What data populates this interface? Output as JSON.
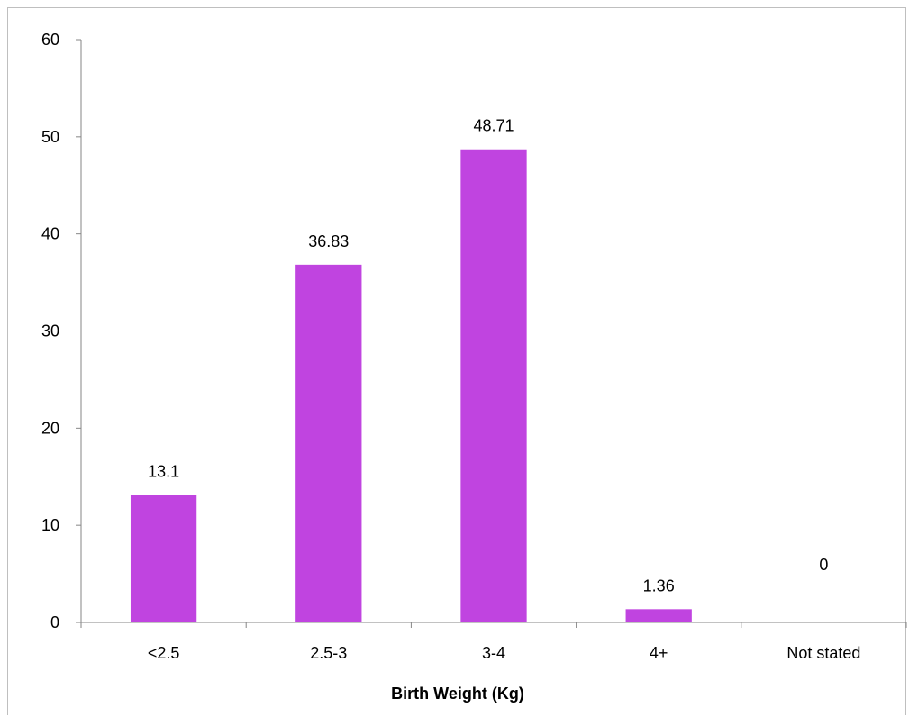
{
  "chart_data": {
    "type": "bar",
    "categories": [
      "<2.5",
      "2.5-3",
      "3-4",
      "4+",
      "Not stated"
    ],
    "values": [
      13.1,
      36.83,
      48.71,
      1.36,
      0
    ],
    "data_labels": [
      "13.1",
      "36.83",
      "48.71",
      "1.36",
      "0"
    ],
    "title": "",
    "xlabel": "Birth Weight (Kg)",
    "ylabel": "",
    "ylim": [
      0,
      60
    ],
    "yticks": [
      0,
      10,
      20,
      30,
      40,
      50,
      60
    ],
    "grid": false,
    "legend": "none",
    "bar_color": "#C044E0",
    "axis_color": "#868686"
  }
}
